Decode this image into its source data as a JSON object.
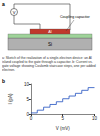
{
  "figure": {
    "panels": [
      "a",
      "b"
    ],
    "labels": {
      "source": "V",
      "capacitor": "Coupling capacitor",
      "island": "Al",
      "substrate": "Si"
    }
  },
  "caption": "a: Sketch of the realization of a single-electron device: an Al island coupled to the gate through a capacitor. b: Current vs. gate voltage showing Coulomb staircase steps, one per added electron.",
  "chart_data": {
    "type": "line",
    "color": "#1f4fbf",
    "marker": "none",
    "line_style": "solid",
    "x_label": "V (mV)",
    "y_label": "I (pA)",
    "x": [
      0,
      1,
      1,
      2,
      2,
      3,
      3,
      4,
      4,
      5,
      5,
      6,
      6,
      7,
      7,
      8,
      8,
      9,
      9,
      10
    ],
    "values": [
      0.4,
      0.4,
      1.3,
      1.3,
      2.3,
      2.3,
      3.2,
      3.2,
      4.1,
      4.1,
      5.1,
      5.1,
      6.0,
      6.0,
      6.9,
      6.9,
      7.9,
      7.9,
      8.8,
      8.8
    ],
    "xlim": [
      0,
      10
    ],
    "xticks": [
      0,
      5,
      10
    ],
    "ylim": [
      0,
      10
    ],
    "yticks": [
      0,
      5,
      10
    ],
    "grid": false
  }
}
